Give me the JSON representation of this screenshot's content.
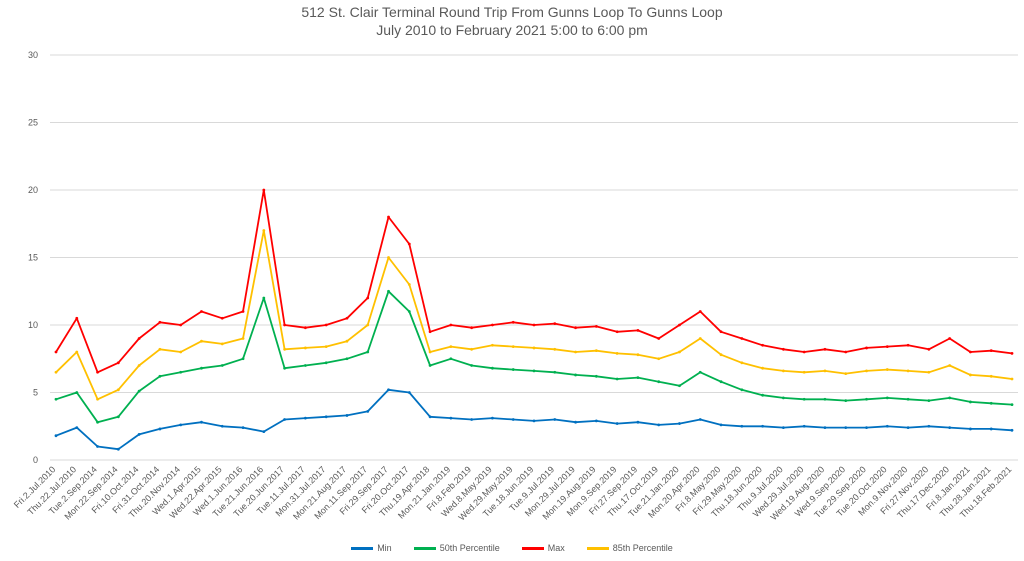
{
  "chart_data": {
    "type": "line",
    "title": "512 St. Clair Terminal Round Trip From Gunns Loop To Gunns Loop",
    "subtitle": "July 2010 to February 2021 5:00 to 6:00 pm",
    "ylim": [
      0,
      30
    ],
    "yticks": [
      "0",
      "5",
      "10",
      "15",
      "20",
      "25",
      "30"
    ],
    "grid": true,
    "legend_position": "bottom",
    "categories": [
      "Fri.2.Jul.2010",
      "Thu.22.Jul.2010",
      "Tue.2.Sep.2014",
      "Mon.22.Sep.2014",
      "Fri.10.Oct.2014",
      "Fri.31.Oct.2014",
      "Thu.20.Nov.2014",
      "Wed.1.Apr.2015",
      "Wed.22.Apr.2015",
      "Wed.1.Jun.2016",
      "Tue.21.Jun.2016",
      "Tue.20.Jun.2017",
      "Tue.11.Jul.2017",
      "Mon.31.Jul.2017",
      "Mon.21.Aug.2017",
      "Mon.11.Sep.2017",
      "Fri.29.Sep.2017",
      "Fri.20.Oct.2017",
      "Thu.19.Apr.2018",
      "Mon.21.Jan.2019",
      "Fri.8.Feb.2019",
      "Wed.8.May.2019",
      "Wed.29.May.2019",
      "Tue.18.Jun.2019",
      "Tue.9.Jul.2019",
      "Mon.29.Jul.2019",
      "Mon.19.Aug.2019",
      "Mon.9.Sep.2019",
      "Fri.27.Sep.2019",
      "Thu.17.Oct.2019",
      "Tue.21.Jan.2020",
      "Mon.20.Apr.2020",
      "Fri.8.May.2020",
      "Fri.29.May.2020",
      "Thu.18.Jun.2020",
      "Thu.9.Jul.2020",
      "Wed.29.Jul.2020",
      "Wed.19.Aug.2020",
      "Wed.9.Sep.2020",
      "Tue.29.Sep.2020",
      "Tue.20.Oct.2020",
      "Mon.9.Nov.2020",
      "Fri.27.Nov.2020",
      "Thu.17.Dec.2020",
      "Fri.8.Jan.2021",
      "Thu.28.Jan.2021",
      "Thu.18.Feb.2021"
    ],
    "series": [
      {
        "name": "Min",
        "color": "#0070C0",
        "values": [
          1.8,
          2.4,
          1.0,
          0.8,
          1.9,
          2.3,
          2.6,
          2.8,
          2.5,
          2.4,
          2.1,
          3.0,
          3.1,
          3.2,
          3.3,
          3.6,
          5.2,
          5.0,
          3.2,
          3.1,
          3.0,
          3.1,
          3.0,
          2.9,
          3.0,
          2.8,
          2.9,
          2.7,
          2.8,
          2.6,
          2.7,
          3.0,
          2.6,
          2.5,
          2.5,
          2.4,
          2.5,
          2.4,
          2.4,
          2.4,
          2.5,
          2.4,
          2.5,
          2.4,
          2.3,
          2.3,
          2.2
        ]
      },
      {
        "name": "50th Percentile",
        "color": "#00B050",
        "values": [
          4.5,
          5.0,
          2.8,
          3.2,
          5.1,
          6.2,
          6.5,
          6.8,
          7.0,
          7.5,
          12.0,
          6.8,
          7.0,
          7.2,
          7.5,
          8.0,
          12.5,
          11.0,
          7.0,
          7.5,
          7.0,
          6.8,
          6.7,
          6.6,
          6.5,
          6.3,
          6.2,
          6.0,
          6.1,
          5.8,
          5.5,
          6.5,
          5.8,
          5.2,
          4.8,
          4.6,
          4.5,
          4.5,
          4.4,
          4.5,
          4.6,
          4.5,
          4.4,
          4.6,
          4.3,
          4.2,
          4.1
        ]
      },
      {
        "name": "Max",
        "color": "#FF0000",
        "values": [
          8.0,
          10.5,
          6.5,
          7.2,
          9.0,
          10.2,
          10.0,
          11.0,
          10.5,
          11.0,
          20.0,
          10.0,
          9.8,
          10.0,
          10.5,
          12.0,
          18.0,
          16.0,
          9.5,
          10.0,
          9.8,
          10.0,
          10.2,
          10.0,
          10.1,
          9.8,
          9.9,
          9.5,
          9.6,
          9.0,
          10.0,
          11.0,
          9.5,
          9.0,
          8.5,
          8.2,
          8.0,
          8.2,
          8.0,
          8.3,
          8.4,
          8.5,
          8.2,
          9.0,
          8.0,
          8.1,
          7.9
        ]
      },
      {
        "name": "85th Percentile",
        "color": "#FFC000",
        "values": [
          6.5,
          8.0,
          4.5,
          5.2,
          7.0,
          8.2,
          8.0,
          8.8,
          8.6,
          9.0,
          17.0,
          8.2,
          8.3,
          8.4,
          8.8,
          10.0,
          15.0,
          13.0,
          8.0,
          8.4,
          8.2,
          8.5,
          8.4,
          8.3,
          8.2,
          8.0,
          8.1,
          7.9,
          7.8,
          7.5,
          8.0,
          9.0,
          7.8,
          7.2,
          6.8,
          6.6,
          6.5,
          6.6,
          6.4,
          6.6,
          6.7,
          6.6,
          6.5,
          7.0,
          6.3,
          6.2,
          6.0
        ]
      }
    ]
  }
}
